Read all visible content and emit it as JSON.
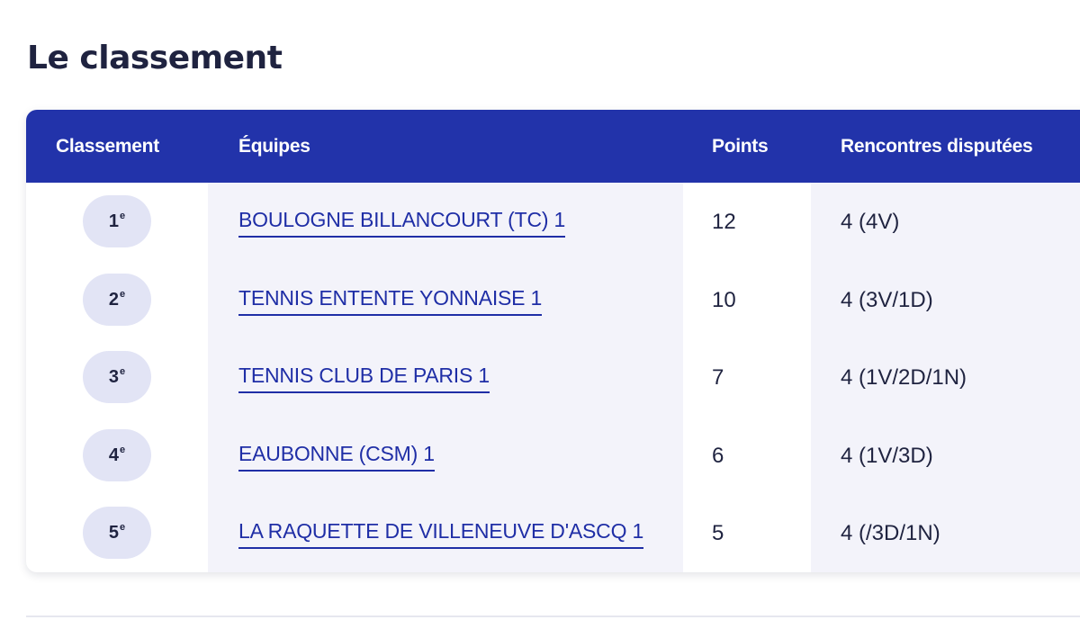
{
  "page": {
    "title": "Le classement"
  },
  "table": {
    "headers": {
      "rank": "Classement",
      "team": "Équipes",
      "points": "Points",
      "played": "Rencontres disputées"
    },
    "rows": [
      {
        "rank": "1",
        "rank_suffix": "e",
        "team": "BOULOGNE BILLANCOURT (TC) 1",
        "points": "12",
        "played": "4 (4V)"
      },
      {
        "rank": "2",
        "rank_suffix": "e",
        "team": "TENNIS ENTENTE YONNAISE 1",
        "points": "10",
        "played": "4 (3V/1D)"
      },
      {
        "rank": "3",
        "rank_suffix": "e",
        "team": "TENNIS CLUB DE PARIS 1",
        "points": "7",
        "played": "4 (1V/2D/1N)"
      },
      {
        "rank": "4",
        "rank_suffix": "e",
        "team": "EAUBONNE (CSM) 1",
        "points": "6",
        "played": "4 (1V/3D)"
      },
      {
        "rank": "5",
        "rank_suffix": "e",
        "team": "LA RAQUETTE DE VILLENEUVE D'ASCQ 1",
        "points": "5",
        "played": "4 (/3D/1N)"
      }
    ]
  },
  "colors": {
    "header_bg": "#2233aa",
    "link": "#1f2ea6",
    "badge_bg": "#e2e4f5",
    "shade": "#f3f3fa",
    "text": "#1f2340"
  }
}
